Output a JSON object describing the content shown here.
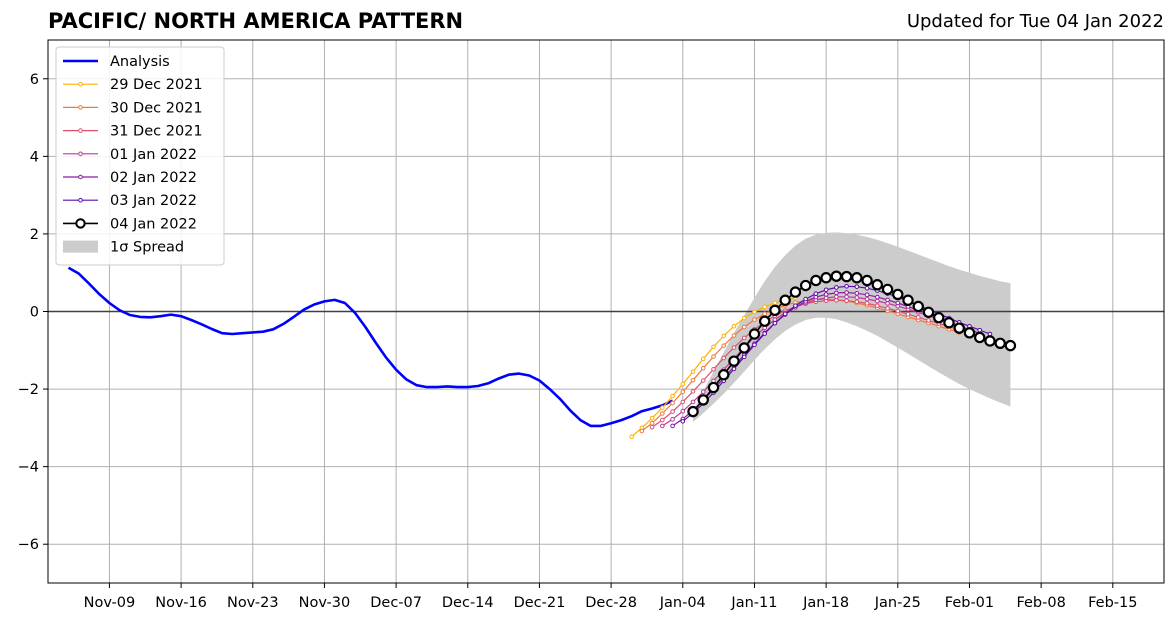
{
  "header": {
    "title": "PACIFIC/ NORTH AMERICA PATTERN",
    "updated": "Updated for Tue 04 Jan 2022"
  },
  "chart_data": {
    "type": "line",
    "x_axis": {
      "type": "date",
      "xlim": [
        "2021-11-03",
        "2022-02-20"
      ],
      "ticks": [
        {
          "date": "2021-11-09",
          "label": "Nov-09"
        },
        {
          "date": "2021-11-16",
          "label": "Nov-16"
        },
        {
          "date": "2021-11-23",
          "label": "Nov-23"
        },
        {
          "date": "2021-11-30",
          "label": "Nov-30"
        },
        {
          "date": "2021-12-07",
          "label": "Dec-07"
        },
        {
          "date": "2021-12-14",
          "label": "Dec-14"
        },
        {
          "date": "2021-12-21",
          "label": "Dec-21"
        },
        {
          "date": "2021-12-28",
          "label": "Dec-28"
        },
        {
          "date": "2022-01-04",
          "label": "Jan-04"
        },
        {
          "date": "2022-01-11",
          "label": "Jan-11"
        },
        {
          "date": "2022-01-18",
          "label": "Jan-18"
        },
        {
          "date": "2022-01-25",
          "label": "Jan-25"
        },
        {
          "date": "2022-02-01",
          "label": "Feb-01"
        },
        {
          "date": "2022-02-08",
          "label": "Feb-08"
        },
        {
          "date": "2022-02-15",
          "label": "Feb-15"
        }
      ]
    },
    "y_axis": {
      "ylim": [
        -7,
        7
      ],
      "ticks": [
        -6,
        -4,
        -2,
        0,
        2,
        4,
        6
      ],
      "tick_labels": [
        "−6",
        "−4",
        "−2",
        "0",
        "2",
        "4",
        "6"
      ]
    },
    "grid": true,
    "zero_line": true,
    "legend": {
      "placement": "upper-left",
      "entries": [
        "Analysis",
        "29 Dec 2021",
        "30 Dec 2021",
        "31 Dec 2021",
        "01 Jan 2022",
        "02 Jan 2022",
        "03 Jan 2022",
        "04 Jan 2022",
        "1σ Spread"
      ]
    },
    "series": [
      {
        "name": "Analysis",
        "kind": "analysis",
        "color": "#0000ff",
        "dates": [
          "2021-11-05",
          "2021-11-06",
          "2021-11-07",
          "2021-11-08",
          "2021-11-09",
          "2021-11-10",
          "2021-11-11",
          "2021-11-12",
          "2021-11-13",
          "2021-11-14",
          "2021-11-15",
          "2021-11-16",
          "2021-11-17",
          "2021-11-18",
          "2021-11-19",
          "2021-11-20",
          "2021-11-21",
          "2021-11-22",
          "2021-11-23",
          "2021-11-24",
          "2021-11-25",
          "2021-11-26",
          "2021-11-27",
          "2021-11-28",
          "2021-11-29",
          "2021-11-30",
          "2021-12-01",
          "2021-12-02",
          "2021-12-03",
          "2021-12-04",
          "2021-12-05",
          "2021-12-06",
          "2021-12-07",
          "2021-12-08",
          "2021-12-09",
          "2021-12-10",
          "2021-12-11",
          "2021-12-12",
          "2021-12-13",
          "2021-12-14",
          "2021-12-15",
          "2021-12-16",
          "2021-12-17",
          "2021-12-18",
          "2021-12-19",
          "2021-12-20",
          "2021-12-21",
          "2021-12-22",
          "2021-12-23",
          "2021-12-24",
          "2021-12-25",
          "2021-12-26",
          "2021-12-27",
          "2021-12-28",
          "2021-12-29",
          "2021-12-30",
          "2021-12-31",
          "2022-01-01",
          "2022-01-02",
          "2022-01-03"
        ],
        "values": [
          1.13,
          0.98,
          0.72,
          0.45,
          0.22,
          0.03,
          -0.09,
          -0.14,
          -0.15,
          -0.12,
          -0.08,
          -0.12,
          -0.22,
          -0.33,
          -0.45,
          -0.56,
          -0.58,
          -0.56,
          -0.54,
          -0.52,
          -0.46,
          -0.32,
          -0.14,
          0.05,
          0.18,
          0.26,
          0.3,
          0.22,
          -0.04,
          -0.4,
          -0.8,
          -1.18,
          -1.5,
          -1.75,
          -1.9,
          -1.95,
          -1.95,
          -1.93,
          -1.95,
          -1.95,
          -1.92,
          -1.85,
          -1.73,
          -1.63,
          -1.6,
          -1.65,
          -1.78,
          -2.0,
          -2.25,
          -2.55,
          -2.8,
          -2.95,
          -2.95,
          -2.88,
          -2.8,
          -2.7,
          -2.57,
          -2.5,
          -2.42,
          -2.3
        ]
      },
      {
        "name": "29 Dec 2021",
        "kind": "forecast",
        "color": "#ffb000",
        "start": "2021-12-30",
        "values": [
          -3.23,
          -3.0,
          -2.75,
          -2.48,
          -2.18,
          -1.87,
          -1.55,
          -1.22,
          -0.91,
          -0.63,
          -0.38,
          -0.17,
          -0.01,
          0.12,
          0.22,
          0.3,
          0.35
        ]
      },
      {
        "name": "30 Dec 2021",
        "kind": "forecast",
        "color": "#f07a3a",
        "start": "2021-12-31",
        "values": [
          -3.08,
          -2.88,
          -2.63,
          -2.36,
          -2.07,
          -1.77,
          -1.46,
          -1.16,
          -0.88,
          -0.62,
          -0.4,
          -0.21,
          -0.06,
          0.06,
          0.16,
          0.23,
          0.28,
          0.31,
          0.32,
          0.3,
          0.27,
          0.22,
          0.16,
          0.09,
          0.02,
          -0.06,
          -0.14,
          -0.22,
          -0.3,
          -0.38,
          -0.46,
          -0.54
        ]
      },
      {
        "name": "31 Dec 2021",
        "kind": "forecast",
        "color": "#dc5070",
        "start": "2022-01-01",
        "values": [
          -2.98,
          -2.8,
          -2.58,
          -2.33,
          -2.06,
          -1.78,
          -1.49,
          -1.2,
          -0.93,
          -0.68,
          -0.46,
          -0.27,
          -0.11,
          0.02,
          0.12,
          0.2,
          0.25,
          0.28,
          0.29,
          0.28,
          0.25,
          0.21,
          0.15,
          0.08,
          0.01,
          -0.07,
          -0.15,
          -0.23,
          -0.31,
          -0.39,
          -0.47,
          -0.55
        ]
      },
      {
        "name": "01 Jan 2022",
        "kind": "forecast",
        "color": "#bc3c96",
        "start": "2022-01-02",
        "values": [
          -2.95,
          -2.78,
          -2.57,
          -2.33,
          -2.07,
          -1.79,
          -1.5,
          -1.21,
          -0.93,
          -0.66,
          -0.42,
          -0.21,
          -0.03,
          0.11,
          0.22,
          0.3,
          0.35,
          0.38,
          0.38,
          0.36,
          0.32,
          0.27,
          0.21,
          0.14,
          0.06,
          -0.02,
          -0.11,
          -0.2,
          -0.29,
          -0.38,
          -0.47,
          -0.56
        ]
      },
      {
        "name": "02 Jan 2022",
        "kind": "forecast",
        "color": "#8c1aa6",
        "start": "2022-01-03",
        "values": [
          -2.95,
          -2.77,
          -2.55,
          -2.29,
          -2.01,
          -1.72,
          -1.42,
          -1.12,
          -0.83,
          -0.55,
          -0.3,
          -0.08,
          0.11,
          0.26,
          0.37,
          0.44,
          0.48,
          0.49,
          0.47,
          0.43,
          0.37,
          0.3,
          0.22,
          0.13,
          0.03,
          -0.07,
          -0.17,
          -0.27,
          -0.37,
          -0.47,
          -0.57
        ]
      },
      {
        "name": "03 Jan 2022",
        "kind": "forecast",
        "color": "#5b0da6",
        "start": "2022-01-04",
        "values": [
          -2.83,
          -2.62,
          -2.37,
          -2.09,
          -1.79,
          -1.48,
          -1.17,
          -0.86,
          -0.57,
          -0.3,
          -0.06,
          0.15,
          0.32,
          0.46,
          0.56,
          0.62,
          0.65,
          0.64,
          0.6,
          0.54,
          0.46,
          0.37,
          0.27,
          0.16,
          0.05,
          -0.06,
          -0.17,
          -0.28,
          -0.38,
          -0.48,
          -0.58
        ]
      },
      {
        "name": "04 Jan 2022",
        "kind": "current",
        "color": "#000000",
        "start": "2022-01-05",
        "values": [
          -2.58,
          -2.28,
          -1.96,
          -1.63,
          -1.28,
          -0.94,
          -0.58,
          -0.25,
          0.03,
          0.29,
          0.5,
          0.67,
          0.8,
          0.87,
          0.91,
          0.9,
          0.87,
          0.8,
          0.69,
          0.57,
          0.44,
          0.29,
          0.13,
          -0.02,
          -0.16,
          -0.29,
          -0.43,
          -0.55,
          -0.67,
          -0.76,
          -0.82,
          -0.88
        ]
      },
      {
        "name": "1σ Spread",
        "kind": "spread",
        "color": "#cccccc",
        "start": "2022-01-05",
        "upper": [
          -2.58,
          -2.05,
          -1.55,
          -1.05,
          -0.55,
          -0.1,
          0.35,
          0.78,
          1.15,
          1.45,
          1.7,
          1.88,
          1.98,
          2.03,
          2.04,
          2.02,
          1.98,
          1.92,
          1.85,
          1.76,
          1.67,
          1.57,
          1.47,
          1.37,
          1.27,
          1.17,
          1.08,
          1.0,
          0.92,
          0.85,
          0.78,
          0.73
        ],
        "lower": [
          -2.85,
          -2.62,
          -2.38,
          -2.12,
          -1.84,
          -1.55,
          -1.25,
          -0.97,
          -0.72,
          -0.5,
          -0.34,
          -0.22,
          -0.16,
          -0.16,
          -0.2,
          -0.28,
          -0.38,
          -0.5,
          -0.63,
          -0.78,
          -0.93,
          -1.09,
          -1.25,
          -1.41,
          -1.57,
          -1.72,
          -1.87,
          -2.0,
          -2.12,
          -2.24,
          -2.35,
          -2.45
        ]
      }
    ]
  }
}
